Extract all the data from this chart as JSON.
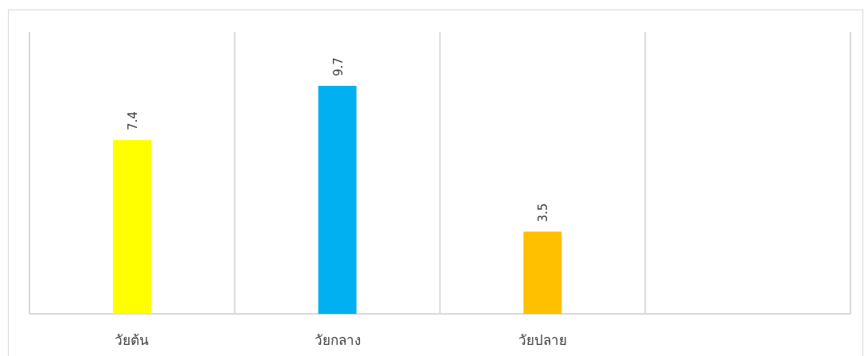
{
  "chart_data": {
    "type": "bar",
    "categories": [
      "วัยต้น",
      "วัยกลาง",
      "วัยปลาย",
      null
    ],
    "values": [
      7.4,
      9.7,
      3.5,
      null
    ],
    "colors": [
      "#ffff00",
      "#00b0f0",
      "#ffc000",
      null
    ],
    "ylim": [
      0,
      12
    ],
    "data_labels": true,
    "grid": "x",
    "tick_labels": "x"
  }
}
